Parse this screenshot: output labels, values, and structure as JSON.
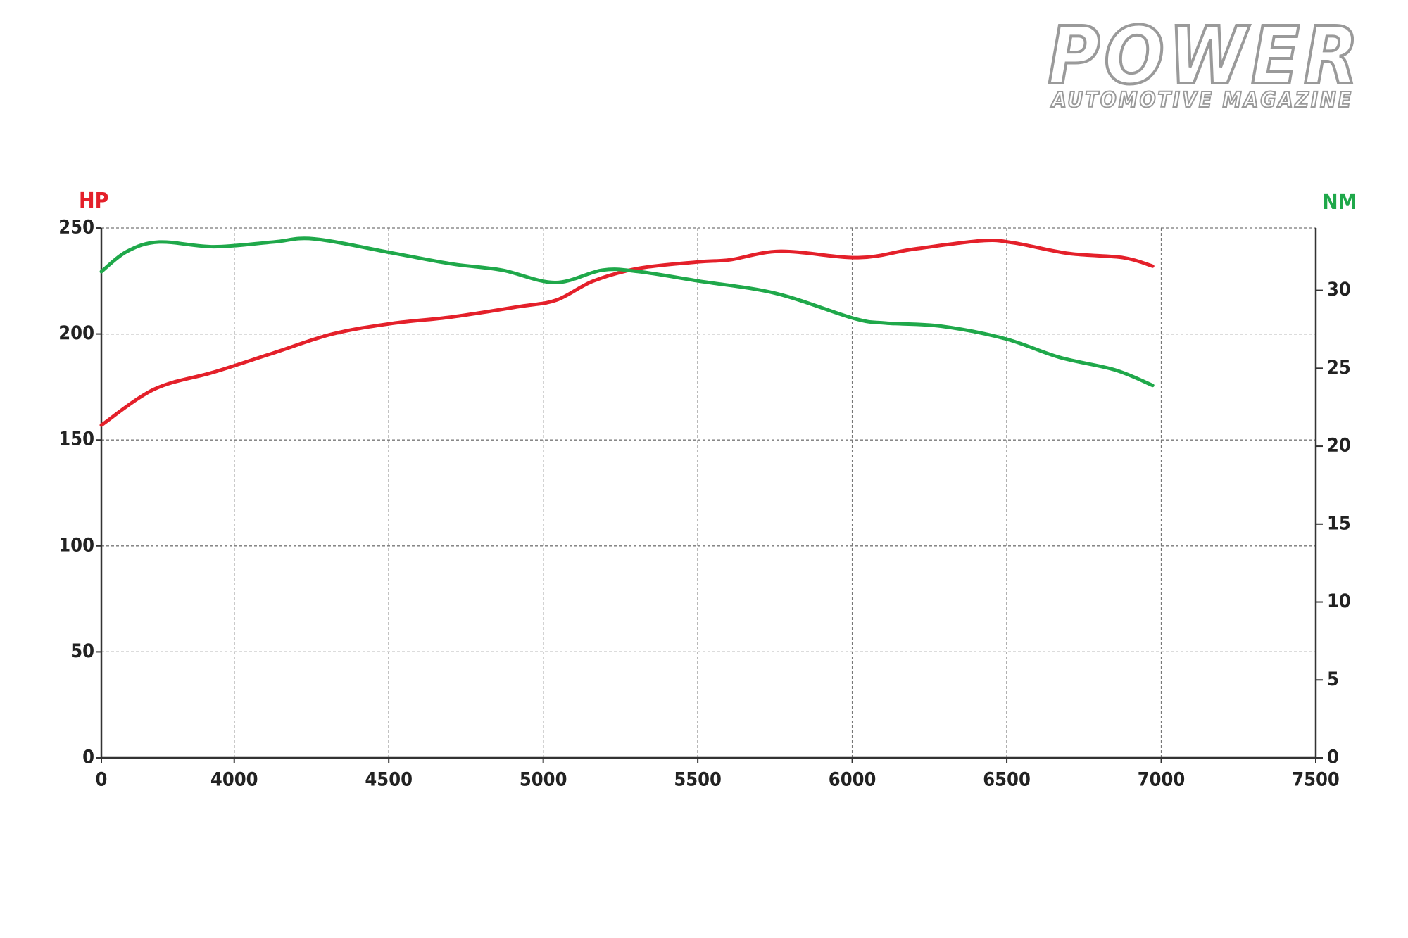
{
  "brand": {
    "title": "POWER",
    "subtitle": "AUTOMOTIVE MAGAZINE"
  },
  "chart_data": {
    "type": "line",
    "y_label": "HP",
    "y2_label": "NM",
    "xlim": [
      3570,
      7500
    ],
    "xticks": [
      {
        "value": 3570,
        "label": "0"
      },
      4000,
      4500,
      5000,
      5500,
      6000,
      6500,
      7000,
      7500
    ],
    "ylim": [
      0,
      250
    ],
    "yticks": [
      0,
      50,
      100,
      150,
      200,
      250
    ],
    "y2lim": [
      0,
      34
    ],
    "y2ticks": [
      0,
      5,
      10,
      15,
      20,
      25,
      30
    ],
    "grid": true,
    "series": [
      {
        "color": "#e4202a",
        "x": [
          3570,
          3742,
          3934,
          4126,
          4318,
          4511,
          4703,
          4925,
          5043,
          5162,
          5310,
          5502,
          5605,
          5768,
          6019,
          6197,
          6418,
          6522,
          6699,
          6877,
          6972
        ],
        "values": [
          157,
          174,
          182,
          191,
          200,
          205,
          208,
          213,
          216,
          225,
          231,
          234,
          235,
          239,
          236,
          240,
          244,
          243,
          238,
          236,
          232
        ]
      },
      {
        "color": "#1fa84a",
        "axis": "y2",
        "x": [
          3570,
          3653,
          3757,
          3934,
          4126,
          4259,
          4511,
          4703,
          4866,
          5038,
          5192,
          5310,
          5502,
          5754,
          6005,
          6109,
          6287,
          6494,
          6671,
          6849,
          6972
        ],
        "values": [
          31.2,
          32.5,
          33.1,
          32.8,
          33.1,
          33.3,
          32.4,
          31.7,
          31.3,
          30.5,
          31.3,
          31.2,
          30.6,
          29.8,
          28.2,
          27.9,
          27.7,
          26.9,
          25.7,
          24.9,
          23.9
        ]
      }
    ]
  }
}
